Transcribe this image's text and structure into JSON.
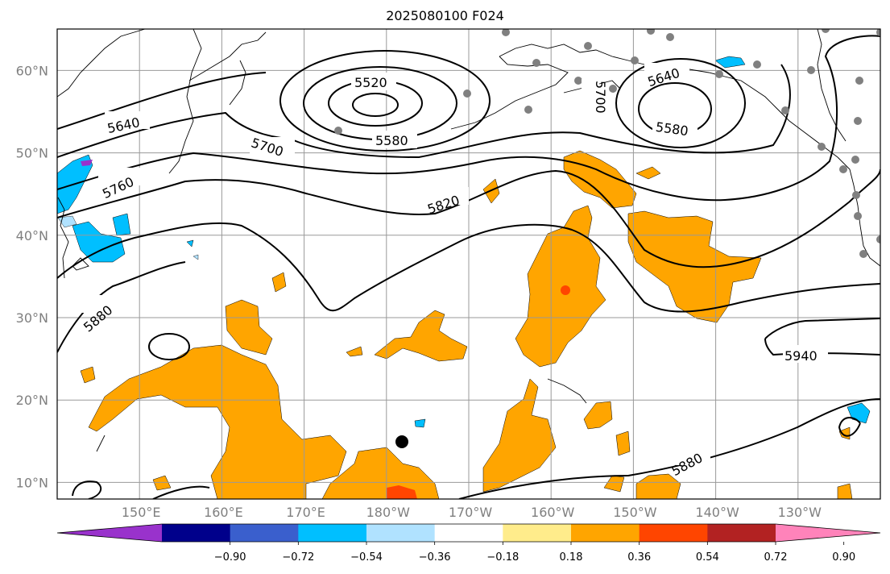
{
  "title": "2025080100 F024",
  "lat_labels": [
    {
      "text": "60°N",
      "lat": 60
    },
    {
      "text": "50°N",
      "lat": 50
    },
    {
      "text": "40°N",
      "lat": 40
    },
    {
      "text": "30°N",
      "lat": 30
    },
    {
      "text": "20°N",
      "lat": 20
    },
    {
      "text": "10°N",
      "lat": 10
    }
  ],
  "lon_labels": [
    {
      "text": "150°E",
      "lon": 150
    },
    {
      "text": "160°E",
      "lon": 160
    },
    {
      "text": "170°E",
      "lon": 170
    },
    {
      "text": "180°W",
      "lon": 180
    },
    {
      "text": "170°W",
      "lon": 190
    },
    {
      "text": "160°W",
      "lon": 200
    },
    {
      "text": "150°W",
      "lon": 210
    },
    {
      "text": "140°W",
      "lon": 220
    },
    {
      "text": "130°W",
      "lon": 230
    }
  ],
  "contour_labels": [
    "5520",
    "5580",
    "5580",
    "5640",
    "5640",
    "5700",
    "5700",
    "5760",
    "5820",
    "5880",
    "5880",
    "5940"
  ],
  "colorbar": {
    "colors": [
      "#9932cc",
      "#00008b",
      "#3a5fcd",
      "#00bfff",
      "#b0e2ff",
      "#ffffff",
      "#ffec8b",
      "#ffa500",
      "#ff4500",
      "#b22222",
      "#ff83ba"
    ],
    "ticks": [
      "−0.90",
      "−0.72",
      "−0.54",
      "−0.36",
      "−0.18",
      "0.18",
      "0.36",
      "0.54",
      "0.72",
      "0.90"
    ]
  }
}
